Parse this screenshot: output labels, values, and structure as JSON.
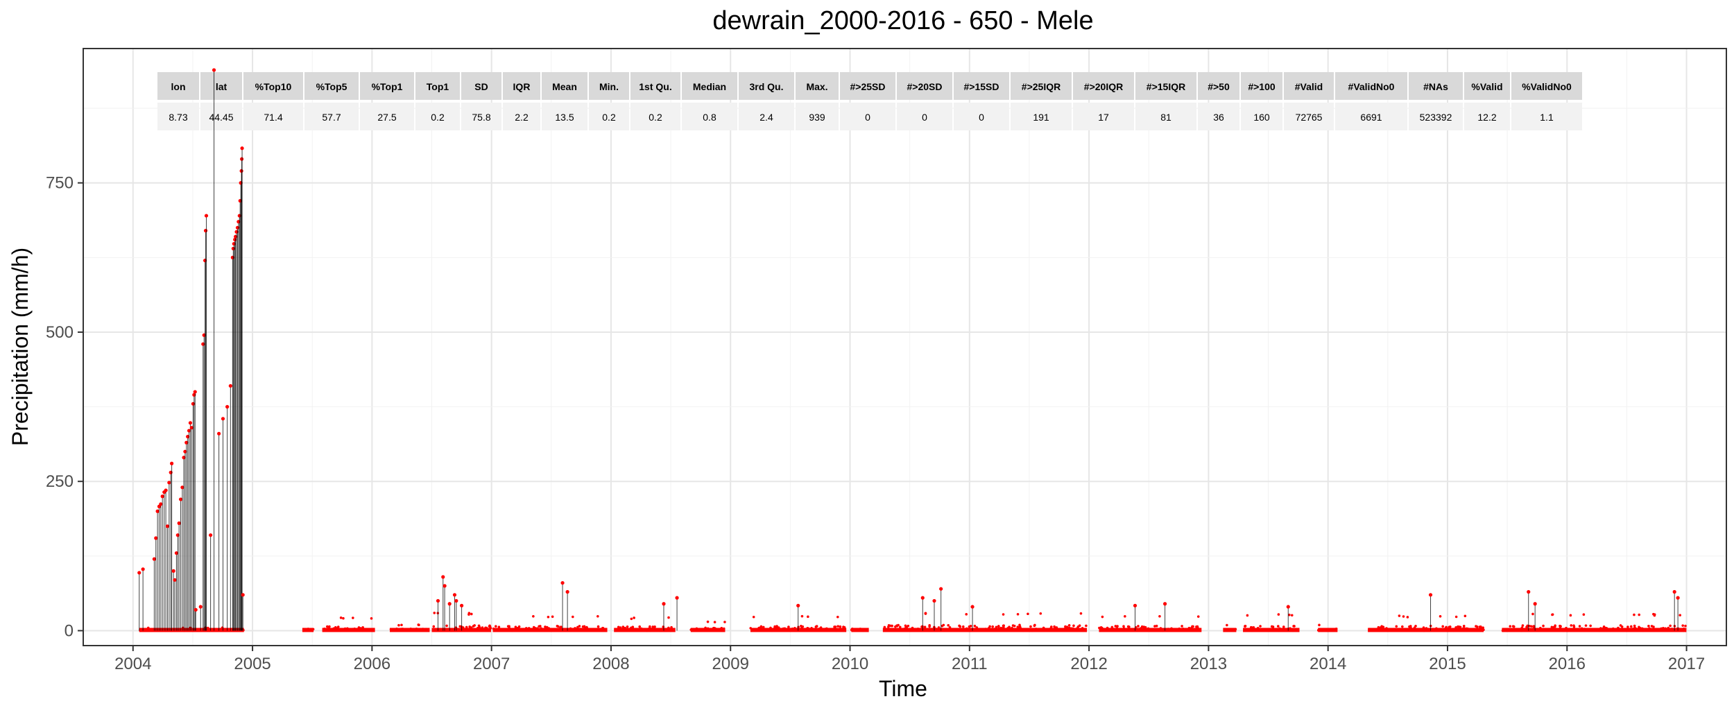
{
  "chart_data": {
    "type": "line",
    "title": "dewrain_2000-2016 - 650 - Mele",
    "xlabel": "Time",
    "ylabel": "Precipitation (mm/h)",
    "x_ticks": [
      "2004",
      "2005",
      "2006",
      "2007",
      "2008",
      "2009",
      "2010",
      "2011",
      "2012",
      "2013",
      "2014",
      "2015",
      "2016",
      "2017"
    ],
    "y_ticks": [
      0,
      250,
      500,
      750
    ],
    "xlim": [
      "2003-08-01",
      "2017-05-01"
    ],
    "ylim": [
      -25,
      975
    ],
    "grid": true,
    "series_color": "#ff0000",
    "stem_color": "#000000",
    "stats_table": {
      "headers": [
        "lon",
        "lat",
        "%Top10",
        "%Top5",
        "%Top1",
        "Top1",
        "SD",
        "IQR",
        "Mean",
        "Min.",
        "1st Qu.",
        "Median",
        "3rd Qu.",
        "Max.",
        "#>25SD",
        "#>20SD",
        "#>15SD",
        "#>25IQR",
        "#>20IQR",
        "#>15IQR",
        "#>50",
        "#>100",
        "#Valid",
        "#ValidNo0",
        "#NAs",
        "%Valid",
        "%ValidNo0"
      ],
      "values": [
        "8.73",
        "44.45",
        "71.4",
        "57.7",
        "27.5",
        "0.2",
        "75.8",
        "2.2",
        "13.5",
        "0.2",
        "0.2",
        "0.8",
        "2.4",
        "939",
        "0",
        "0",
        "0",
        "191",
        "17",
        "81",
        "36",
        "160",
        "72765",
        "6691",
        "523392",
        "12.2",
        "1.1"
      ]
    },
    "spikes": [
      {
        "t": "2004-01-20",
        "y": 97
      },
      {
        "t": "2004-02-01",
        "y": 103
      },
      {
        "t": "2004-03-05",
        "y": 120
      },
      {
        "t": "2004-03-10",
        "y": 155
      },
      {
        "t": "2004-03-15",
        "y": 200
      },
      {
        "t": "2004-03-20",
        "y": 208
      },
      {
        "t": "2004-03-25",
        "y": 212
      },
      {
        "t": "2004-03-30",
        "y": 225
      },
      {
        "t": "2004-04-05",
        "y": 232
      },
      {
        "t": "2004-04-10",
        "y": 235
      },
      {
        "t": "2004-04-15",
        "y": 175
      },
      {
        "t": "2004-04-20",
        "y": 248
      },
      {
        "t": "2004-04-25",
        "y": 265
      },
      {
        "t": "2004-04-28",
        "y": 280
      },
      {
        "t": "2004-05-03",
        "y": 100
      },
      {
        "t": "2004-05-07",
        "y": 85
      },
      {
        "t": "2004-05-12",
        "y": 130
      },
      {
        "t": "2004-05-16",
        "y": 160
      },
      {
        "t": "2004-05-20",
        "y": 180
      },
      {
        "t": "2004-05-25",
        "y": 220
      },
      {
        "t": "2004-05-30",
        "y": 240
      },
      {
        "t": "2004-06-04",
        "y": 290
      },
      {
        "t": "2004-06-08",
        "y": 300
      },
      {
        "t": "2004-06-12",
        "y": 315
      },
      {
        "t": "2004-06-16",
        "y": 325
      },
      {
        "t": "2004-06-20",
        "y": 335
      },
      {
        "t": "2004-06-24",
        "y": 348
      },
      {
        "t": "2004-06-28",
        "y": 340
      },
      {
        "t": "2004-07-02",
        "y": 380
      },
      {
        "t": "2004-07-05",
        "y": 395
      },
      {
        "t": "2004-07-08",
        "y": 400
      },
      {
        "t": "2004-07-10",
        "y": 35
      },
      {
        "t": "2004-07-25",
        "y": 40
      },
      {
        "t": "2004-08-02",
        "y": 480
      },
      {
        "t": "2004-08-05",
        "y": 495
      },
      {
        "t": "2004-08-08",
        "y": 620
      },
      {
        "t": "2004-08-10",
        "y": 670
      },
      {
        "t": "2004-08-12",
        "y": 695
      },
      {
        "t": "2004-08-25",
        "y": 160
      },
      {
        "t": "2004-09-05",
        "y": 939
      },
      {
        "t": "2004-09-20",
        "y": 330
      },
      {
        "t": "2004-10-02",
        "y": 355
      },
      {
        "t": "2004-10-15",
        "y": 375
      },
      {
        "t": "2004-10-25",
        "y": 410
      },
      {
        "t": "2004-11-01",
        "y": 625
      },
      {
        "t": "2004-11-03",
        "y": 640
      },
      {
        "t": "2004-11-05",
        "y": 648
      },
      {
        "t": "2004-11-08",
        "y": 655
      },
      {
        "t": "2004-11-10",
        "y": 660
      },
      {
        "t": "2004-11-13",
        "y": 668
      },
      {
        "t": "2004-11-16",
        "y": 675
      },
      {
        "t": "2004-11-19",
        "y": 685
      },
      {
        "t": "2004-11-22",
        "y": 695
      },
      {
        "t": "2004-11-24",
        "y": 720
      },
      {
        "t": "2004-11-26",
        "y": 750
      },
      {
        "t": "2004-11-28",
        "y": 770
      },
      {
        "t": "2004-11-29",
        "y": 790
      },
      {
        "t": "2004-11-30",
        "y": 808
      },
      {
        "t": "2004-12-02",
        "y": 60
      },
      {
        "t": "2006-07-20",
        "y": 50
      },
      {
        "t": "2006-08-05",
        "y": 90
      },
      {
        "t": "2006-08-10",
        "y": 75
      },
      {
        "t": "2006-08-25",
        "y": 45
      },
      {
        "t": "2006-09-10",
        "y": 60
      },
      {
        "t": "2006-09-15",
        "y": 50
      },
      {
        "t": "2006-10-01",
        "y": 42
      },
      {
        "t": "2007-08-05",
        "y": 80
      },
      {
        "t": "2007-08-20",
        "y": 65
      },
      {
        "t": "2008-06-10",
        "y": 45
      },
      {
        "t": "2008-07-20",
        "y": 55
      },
      {
        "t": "2009-07-25",
        "y": 42
      },
      {
        "t": "2010-08-10",
        "y": 55
      },
      {
        "t": "2010-09-15",
        "y": 50
      },
      {
        "t": "2010-10-05",
        "y": 70
      },
      {
        "t": "2011-01-10",
        "y": 40
      },
      {
        "t": "2012-05-20",
        "y": 42
      },
      {
        "t": "2012-08-20",
        "y": 45
      },
      {
        "t": "2013-09-01",
        "y": 40
      },
      {
        "t": "2014-11-10",
        "y": 60
      },
      {
        "t": "2015-09-05",
        "y": 65
      },
      {
        "t": "2015-09-25",
        "y": 45
      },
      {
        "t": "2016-11-25",
        "y": 65
      },
      {
        "t": "2016-12-05",
        "y": 55
      }
    ],
    "base_segments": [
      {
        "start": "2004-01-20",
        "end": "2004-12-05",
        "max": 5
      },
      {
        "start": "2005-06-01",
        "end": "2005-07-05",
        "max": 10
      },
      {
        "start": "2005-08-01",
        "end": "2006-01-10",
        "max": 22
      },
      {
        "start": "2006-02-25",
        "end": "2006-06-25",
        "max": 10
      },
      {
        "start": "2006-07-01",
        "end": "2006-12-30",
        "max": 30
      },
      {
        "start": "2007-01-05",
        "end": "2007-12-20",
        "max": 25
      },
      {
        "start": "2008-01-10",
        "end": "2008-07-15",
        "max": 22
      },
      {
        "start": "2008-09-01",
        "end": "2008-12-15",
        "max": 15
      },
      {
        "start": "2009-03-01",
        "end": "2009-12-20",
        "max": 25
      },
      {
        "start": "2010-01-05",
        "end": "2010-02-28",
        "max": 10
      },
      {
        "start": "2010-04-10",
        "end": "2011-12-25",
        "max": 30
      },
      {
        "start": "2012-02-01",
        "end": "2012-12-10",
        "max": 25
      },
      {
        "start": "2013-02-15",
        "end": "2013-03-25",
        "max": 10
      },
      {
        "start": "2013-04-15",
        "end": "2013-10-05",
        "max": 28
      },
      {
        "start": "2013-12-01",
        "end": "2014-01-30",
        "max": 10
      },
      {
        "start": "2014-05-01",
        "end": "2015-04-20",
        "max": 25
      },
      {
        "start": "2015-06-15",
        "end": "2016-12-31",
        "max": 28
      }
    ]
  }
}
